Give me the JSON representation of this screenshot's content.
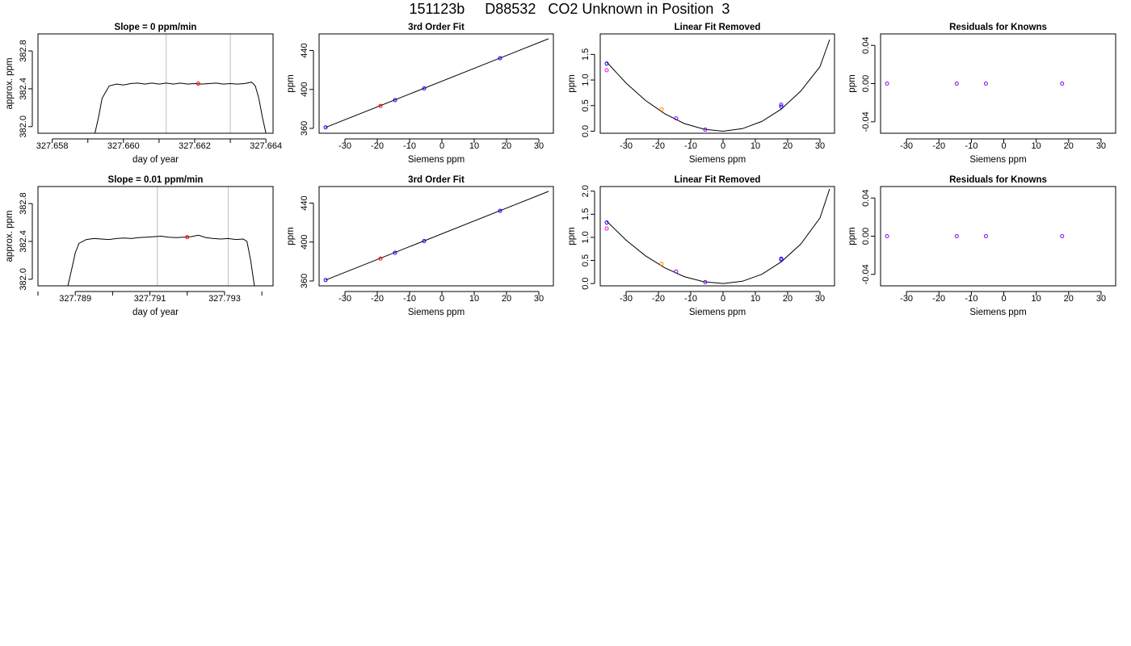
{
  "page": {
    "title": "151123b     D88532   CO2 Unknown in Position  3"
  },
  "chart_data": [
    {
      "type": "line",
      "title": "Slope =  0  ppm/min",
      "xlabel": "day of year",
      "ylabel": "approx. ppm",
      "xlim": [
        327.6576,
        327.6642
      ],
      "ylim": [
        381.93,
        382.98
      ],
      "xticks": [
        327.658,
        327.66,
        327.662,
        327.664
      ],
      "xticklabels": [
        "327.658",
        "327.660",
        "327.662",
        "327.664"
      ],
      "xticks_minor": [
        327.659,
        327.661,
        327.663
      ],
      "yticks": [
        382.0,
        382.4,
        382.8
      ],
      "yticklabels": [
        "382.0",
        "382.4",
        "382.8"
      ],
      "vlines": [
        327.6612,
        327.663
      ],
      "vline_color": "#bebebe",
      "series": [
        {
          "x": [
            327.6592,
            327.6593,
            327.6594,
            327.6596,
            327.6598,
            327.66,
            327.6602,
            327.6604,
            327.6606,
            327.6608,
            327.661,
            327.6612,
            327.6614,
            327.6616,
            327.6618,
            327.662,
            327.6622,
            327.6624,
            327.6626,
            327.6628,
            327.663,
            327.6632,
            327.6634,
            327.6636,
            327.6637,
            327.6638,
            327.6639,
            327.664
          ],
          "y": [
            381.93,
            382.1,
            382.3,
            382.43,
            382.45,
            382.44,
            382.455,
            382.46,
            382.45,
            382.46,
            382.45,
            382.46,
            382.45,
            382.46,
            382.45,
            382.455,
            382.45,
            382.455,
            382.46,
            382.45,
            382.455,
            382.45,
            382.455,
            382.47,
            382.43,
            382.3,
            382.1,
            381.93
          ],
          "color": "#000000"
        }
      ],
      "points": [
        {
          "x": 327.6621,
          "y": 382.455,
          "color": "#ff0000"
        }
      ]
    },
    {
      "type": "line",
      "title": "3rd Order Fit",
      "xlabel": "Siemens ppm",
      "ylabel": "ppm",
      "xlim": [
        -38,
        34.5
      ],
      "ylim": [
        355,
        457
      ],
      "xticks": [
        -30,
        -20,
        -10,
        0,
        10,
        20,
        30
      ],
      "xticklabels": [
        "-30",
        "-20",
        "-10",
        "0",
        "10",
        "20",
        "30"
      ],
      "yticks": [
        360,
        400,
        440
      ],
      "yticklabels": [
        "360",
        "400",
        "440"
      ],
      "series": [
        {
          "x": [
            -36,
            33
          ],
          "y": [
            361,
            452
          ],
          "color": "#000000"
        }
      ],
      "points": [
        {
          "x": -36,
          "y": 361,
          "color": "#0000ff"
        },
        {
          "x": -14.5,
          "y": 389,
          "color": "#0000ff"
        },
        {
          "x": -5.5,
          "y": 401,
          "color": "#0000ff"
        },
        {
          "x": 18,
          "y": 432,
          "color": "#0000ff"
        },
        {
          "x": -19,
          "y": 383,
          "color": "#ff0000"
        }
      ]
    },
    {
      "type": "line",
      "title": "Linear Fit Removed",
      "xlabel": "Siemens ppm",
      "ylabel": "ppm",
      "xlim": [
        -38,
        34.5
      ],
      "ylim": [
        -0.04,
        1.9
      ],
      "xticks": [
        -30,
        -20,
        -10,
        0,
        10,
        20,
        30
      ],
      "xticklabels": [
        "-30",
        "-20",
        "-10",
        "0",
        "10",
        "20",
        "30"
      ],
      "yticks": [
        0,
        0.5,
        1,
        1.5
      ],
      "yticklabels": [
        "0.0",
        "0.5",
        "1.0",
        "1.5"
      ],
      "series": [
        {
          "x": [
            -36,
            -30,
            -24,
            -18,
            -12,
            -6,
            0,
            6,
            12,
            18,
            24,
            30,
            33
          ],
          "y": [
            1.35,
            0.94,
            0.6,
            0.34,
            0.15,
            0.04,
            0.0,
            0.05,
            0.19,
            0.43,
            0.78,
            1.26,
            1.79
          ],
          "color": "#000000"
        }
      ],
      "points": [
        {
          "x": -36,
          "y": 1.32,
          "color": "#0000ff"
        },
        {
          "x": -36,
          "y": 1.19,
          "color": "#ff00ff"
        },
        {
          "x": -19,
          "y": 0.43,
          "color": "#ff8c00"
        },
        {
          "x": -14.5,
          "y": 0.25,
          "color": "#8000ff"
        },
        {
          "x": -5.5,
          "y": 0.03,
          "color": "#8000ff"
        },
        {
          "x": 18,
          "y": 0.52,
          "color": "#8000ff"
        },
        {
          "x": 18,
          "y": 0.48,
          "color": "#0000ff"
        }
      ]
    },
    {
      "type": "scatter",
      "title": "Residuals for Knowns",
      "xlabel": "Siemens ppm",
      "ylabel": "ppm",
      "xlim": [
        -38,
        34.5
      ],
      "ylim": [
        -0.052,
        0.052
      ],
      "xticks": [
        -30,
        -20,
        -10,
        0,
        10,
        20,
        30
      ],
      "xticklabels": [
        "-30",
        "-20",
        "-10",
        "0",
        "10",
        "20",
        "30"
      ],
      "yticks": [
        -0.04,
        0,
        0.04
      ],
      "yticklabels": [
        "-0.04",
        "0.00",
        "0.04"
      ],
      "series": [],
      "points": [
        {
          "x": -36,
          "y": 0,
          "color": "#8000ff"
        },
        {
          "x": -14.5,
          "y": 0,
          "color": "#8000ff"
        },
        {
          "x": -5.5,
          "y": 0,
          "color": "#8000ff"
        },
        {
          "x": 18,
          "y": 0,
          "color": "#8000ff"
        }
      ]
    },
    {
      "type": "line",
      "title": "Slope =  0.01  ppm/min",
      "xlabel": "day of year",
      "ylabel": "approx. ppm",
      "xlim": [
        327.788,
        327.7943
      ],
      "ylim": [
        381.93,
        382.98
      ],
      "xticks": [
        327.789,
        327.791,
        327.793
      ],
      "xticklabels": [
        "327.789",
        "327.791",
        "327.793"
      ],
      "xticks_minor": [
        327.788,
        327.79,
        327.792,
        327.794
      ],
      "yticks": [
        382.0,
        382.4,
        382.8
      ],
      "yticklabels": [
        "382.0",
        "382.4",
        "382.8"
      ],
      "vlines": [
        327.7912,
        327.7931
      ],
      "vline_color": "#bebebe",
      "series": [
        {
          "x": [
            327.7888,
            327.7889,
            327.789,
            327.7891,
            327.7893,
            327.7895,
            327.7897,
            327.7899,
            327.7901,
            327.7903,
            327.7905,
            327.7907,
            327.7909,
            327.7911,
            327.7913,
            327.7915,
            327.7917,
            327.7919,
            327.7921,
            327.7923,
            327.7925,
            327.7927,
            327.7929,
            327.7931,
            327.7933,
            327.7935,
            327.7936,
            327.7937,
            327.7938
          ],
          "y": [
            381.93,
            382.1,
            382.28,
            382.38,
            382.42,
            382.43,
            382.425,
            382.42,
            382.43,
            382.435,
            382.43,
            382.44,
            382.445,
            382.45,
            382.455,
            382.445,
            382.44,
            382.445,
            382.45,
            382.465,
            382.44,
            382.43,
            382.425,
            382.43,
            382.42,
            382.425,
            382.4,
            382.2,
            381.93
          ],
          "color": "#000000"
        }
      ],
      "points": [
        {
          "x": 327.792,
          "y": 382.445,
          "color": "#ff0000"
        }
      ]
    },
    {
      "type": "line",
      "title": "3rd Order Fit",
      "xlabel": "Siemens ppm",
      "ylabel": "ppm",
      "xlim": [
        -38,
        34.5
      ],
      "ylim": [
        355,
        457
      ],
      "xticks": [
        -30,
        -20,
        -10,
        0,
        10,
        20,
        30
      ],
      "xticklabels": [
        "-30",
        "-20",
        "-10",
        "0",
        "10",
        "20",
        "30"
      ],
      "yticks": [
        360,
        400,
        440
      ],
      "yticklabels": [
        "360",
        "400",
        "440"
      ],
      "series": [
        {
          "x": [
            -36,
            33
          ],
          "y": [
            361,
            452
          ],
          "color": "#000000"
        }
      ],
      "points": [
        {
          "x": -36,
          "y": 361,
          "color": "#0000ff"
        },
        {
          "x": -14.5,
          "y": 389,
          "color": "#0000ff"
        },
        {
          "x": -5.5,
          "y": 401,
          "color": "#0000ff"
        },
        {
          "x": 18,
          "y": 432,
          "color": "#0000ff"
        },
        {
          "x": -19,
          "y": 383,
          "color": "#ff0000"
        }
      ]
    },
    {
      "type": "line",
      "title": "Linear Fit Removed",
      "xlabel": "Siemens ppm",
      "ylabel": "ppm",
      "xlim": [
        -38,
        34.5
      ],
      "ylim": [
        -0.05,
        2.1
      ],
      "xticks": [
        -30,
        -20,
        -10,
        0,
        10,
        20,
        30
      ],
      "xticklabels": [
        "-30",
        "-20",
        "-10",
        "0",
        "10",
        "20",
        "30"
      ],
      "yticks": [
        0,
        0.5,
        1,
        1.5,
        2
      ],
      "yticklabels": [
        "0.0",
        "0.5",
        "1.0",
        "1.5",
        "2.0"
      ],
      "series": [
        {
          "x": [
            -36,
            -30,
            -24,
            -18,
            -12,
            -6,
            0,
            6,
            12,
            18,
            24,
            30,
            33
          ],
          "y": [
            1.35,
            0.94,
            0.6,
            0.34,
            0.15,
            0.04,
            0.0,
            0.05,
            0.2,
            0.47,
            0.85,
            1.42,
            2.05
          ],
          "color": "#000000"
        }
      ],
      "points": [
        {
          "x": -36,
          "y": 1.32,
          "color": "#0000ff"
        },
        {
          "x": -36,
          "y": 1.19,
          "color": "#ff00ff"
        },
        {
          "x": -19,
          "y": 0.43,
          "color": "#ff8c00"
        },
        {
          "x": -14.5,
          "y": 0.26,
          "color": "#8000ff"
        },
        {
          "x": -5.5,
          "y": 0.03,
          "color": "#8000ff"
        },
        {
          "x": 18,
          "y": 0.54,
          "color": "#8000ff"
        },
        {
          "x": 18,
          "y": 0.52,
          "color": "#0000ff"
        }
      ]
    },
    {
      "type": "scatter",
      "title": "Residuals for Knowns",
      "xlabel": "Siemens ppm",
      "ylabel": "ppm",
      "xlim": [
        -38,
        34.5
      ],
      "ylim": [
        -0.052,
        0.052
      ],
      "xticks": [
        -30,
        -20,
        -10,
        0,
        10,
        20,
        30
      ],
      "xticklabels": [
        "-30",
        "-20",
        "-10",
        "0",
        "10",
        "20",
        "30"
      ],
      "yticks": [
        -0.04,
        0,
        0.04
      ],
      "yticklabels": [
        "-0.04",
        "0.00",
        "0.04"
      ],
      "series": [],
      "points": [
        {
          "x": -36,
          "y": 0,
          "color": "#8000ff"
        },
        {
          "x": -14.5,
          "y": 0,
          "color": "#8000ff"
        },
        {
          "x": -5.5,
          "y": 0,
          "color": "#8000ff"
        },
        {
          "x": 18,
          "y": 0,
          "color": "#8000ff"
        }
      ]
    }
  ]
}
